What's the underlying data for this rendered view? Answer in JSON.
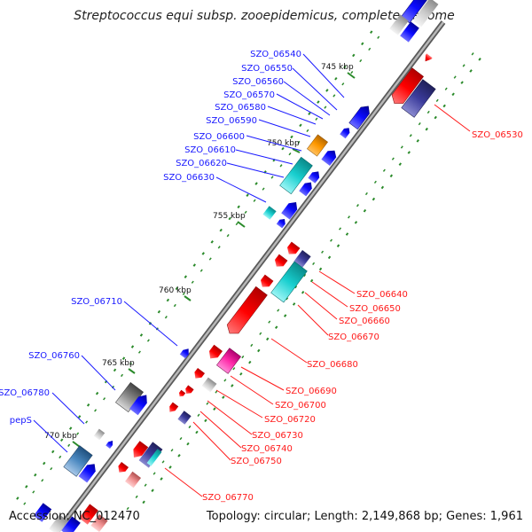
{
  "title": "Streptococcus equi subsp. zooepidemicus, complete genome",
  "accession": "Accession: NC_012470",
  "topology": "Topology: circular; Length: 2,149,868 bp; Genes: 1,961",
  "colors": {
    "forward_label": "#1a1aff",
    "reverse_label": "#ff1a1a",
    "backbone": "#777777",
    "tick": "#2a8a2a"
  },
  "kbp_markers": [
    "745 kbp",
    "750 kbp",
    "755 kbp",
    "760 kbp",
    "765 kbp",
    "770 kbp"
  ],
  "forward_genes": [
    "SZO_06540",
    "SZO_06550",
    "SZO_06560",
    "SZO_06570",
    "SZO_06580",
    "SZO_06590",
    "SZO_06600",
    "SZO_06610",
    "SZO_06620",
    "SZO_06630",
    "SZO_06710",
    "SZO_06760",
    "SZO_06780",
    "pepS"
  ],
  "reverse_genes": [
    "SZO_06530",
    "SZO_06640",
    "SZO_06650",
    "SZO_06660",
    "SZO_06670",
    "SZO_06680",
    "SZO_06690",
    "SZO_06700",
    "SZO_06720",
    "SZO_06730",
    "SZO_06740",
    "SZO_06750",
    "SZO_06770"
  ]
}
